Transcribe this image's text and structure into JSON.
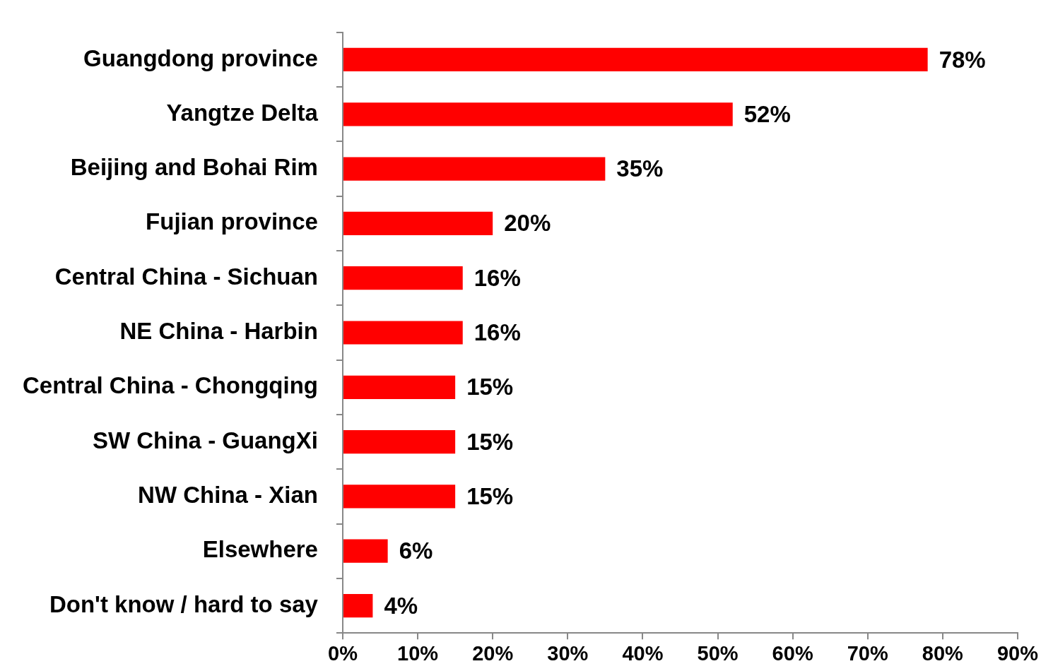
{
  "chart_data": {
    "type": "bar",
    "orientation": "horizontal",
    "categories": [
      "Guangdong province",
      "Yangtze Delta",
      "Beijing and Bohai Rim",
      "Fujian province",
      "Central China - Sichuan",
      "NE China - Harbin",
      "Central China - Chongqing",
      "SW China - GuangXi",
      "NW China - Xian",
      "Elsewhere",
      "Don't know / hard to say"
    ],
    "values": [
      78,
      52,
      35,
      20,
      16,
      16,
      15,
      15,
      15,
      6,
      4
    ],
    "value_labels": [
      "78%",
      "52%",
      "35%",
      "20%",
      "16%",
      "16%",
      "15%",
      "15%",
      "15%",
      "6%",
      "4%"
    ],
    "color": "#ff0000",
    "xlim": [
      0,
      90
    ],
    "xticks": [
      {
        "value": 0,
        "label": "0%"
      },
      {
        "value": 10,
        "label": "10%"
      },
      {
        "value": 20,
        "label": "20%"
      },
      {
        "value": 30,
        "label": "30%"
      },
      {
        "value": 40,
        "label": "40%"
      },
      {
        "value": 50,
        "label": "50%"
      },
      {
        "value": 60,
        "label": "60%"
      },
      {
        "value": 70,
        "label": "70%"
      },
      {
        "value": 80,
        "label": "80%"
      },
      {
        "value": 90,
        "label": "90%"
      }
    ]
  }
}
